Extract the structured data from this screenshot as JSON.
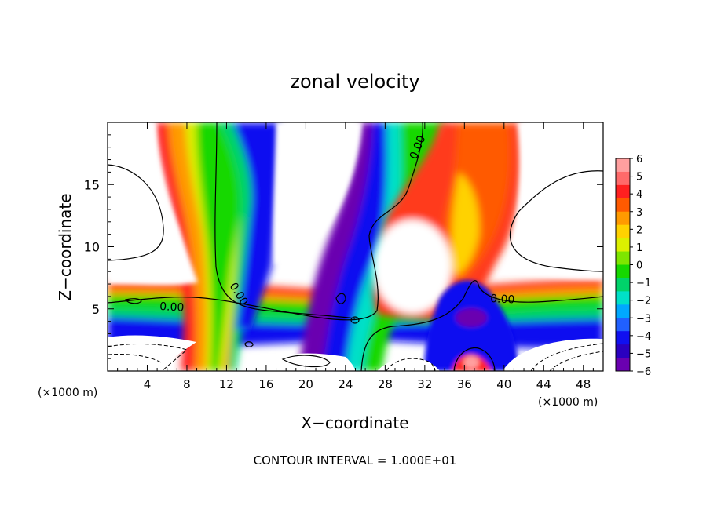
{
  "chart_data": {
    "type": "heatmap",
    "title": "zonal velocity",
    "xlabel": "X−coordinate",
    "ylabel": "Z−coordinate",
    "x_unit_left": "(×1000 m)",
    "x_unit_right": "(×1000 m)",
    "footer": "CONTOUR INTERVAL = 1.000E+01",
    "xlim": [
      0,
      50
    ],
    "ylim": [
      0,
      20
    ],
    "x_ticks": [
      4,
      8,
      12,
      16,
      20,
      24,
      28,
      32,
      36,
      40,
      44,
      48
    ],
    "y_ticks": [
      5,
      10,
      15
    ],
    "colorbar": {
      "min": -6,
      "max": 6,
      "labels": [
        "6",
        "5",
        "4",
        "3",
        "2",
        "1",
        "0",
        "−1",
        "−2",
        "−3",
        "−4",
        "−5",
        "−6"
      ],
      "colors": [
        "#ff9f9f",
        "#ff6a6a",
        "#ff2020",
        "#ff5a00",
        "#ff9a00",
        "#ffd200",
        "#dcf000",
        "#7ee600",
        "#16d800",
        "#00d36a",
        "#00e0c8",
        "#00a8ff",
        "#2060ff",
        "#1010f0",
        "#2a00c0",
        "#6a00b0"
      ]
    },
    "contour_labels": [
      "0.00",
      "0.00",
      "0.00",
      "0.00"
    ],
    "grid": false,
    "legend": "colorbar-right"
  }
}
